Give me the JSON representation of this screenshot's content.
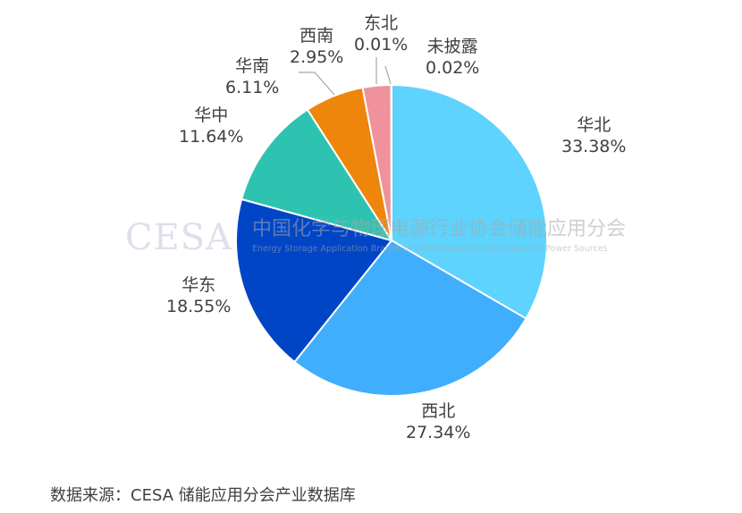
{
  "chart_data": {
    "type": "pie",
    "start_angle": "12 o'clock",
    "direction": "clockwise",
    "slices": [
      {
        "label": "华北",
        "value": 33.38,
        "display": "33.38%",
        "color": "#5dd3fd"
      },
      {
        "label": "西北",
        "value": 27.34,
        "display": "27.34%",
        "color": "#40aefd"
      },
      {
        "label": "华东",
        "value": 18.55,
        "display": "18.55%",
        "color": "#0145c7"
      },
      {
        "label": "华中",
        "value": 11.64,
        "display": "11.64%",
        "color": "#2ec3b1"
      },
      {
        "label": "华南",
        "value": 6.11,
        "display": "6.11%",
        "color": "#ee860b"
      },
      {
        "label": "西南",
        "value": 2.95,
        "display": "2.95%",
        "color": "#ef929b"
      },
      {
        "label": "东北",
        "value": 0.01,
        "display": "0.01%",
        "color": "#b0b0b0"
      },
      {
        "label": "未披露",
        "value": 0.02,
        "display": "0.02%",
        "color": "#c8c8c8"
      }
    ],
    "legend": "none"
  },
  "watermark": {
    "logo": "CESA",
    "cn": "中国化学与物理电源行业协会储能应用分会",
    "en": "Energy Storage Application Branch of China Industrial Association of Power Sources"
  },
  "source": "数据来源：CESA 储能应用分会产业数据库"
}
